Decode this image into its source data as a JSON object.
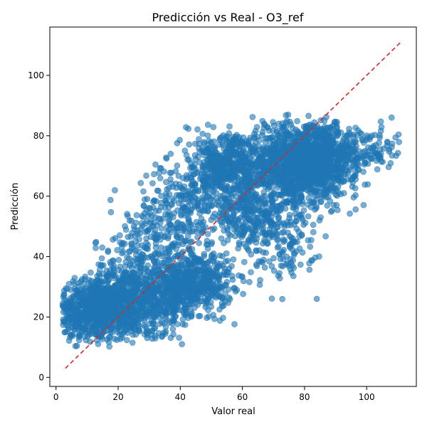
{
  "chart_data": {
    "type": "scatter",
    "title": "Predicción vs Real - O3_ref",
    "xlabel": "Valor real",
    "ylabel": "Predicción",
    "xlim": [
      -2,
      116
    ],
    "ylim": [
      -3,
      116
    ],
    "xticks": [
      0,
      20,
      40,
      60,
      80,
      100
    ],
    "yticks": [
      0,
      20,
      40,
      60,
      80,
      100
    ],
    "grid": false,
    "point_color": "#1f77b4",
    "reference_line": {
      "from": [
        3,
        3
      ],
      "to": [
        111,
        111
      ],
      "color": "#d62728",
      "style": "dashed"
    },
    "series": [
      {
        "clusters": [
          {
            "cx": 12,
            "cy": 22,
            "sx": 7,
            "sy": 5,
            "n": 700
          },
          {
            "cx": 22,
            "cy": 25,
            "sx": 7,
            "sy": 6,
            "n": 400
          },
          {
            "cx": 35,
            "cy": 27,
            "sx": 7,
            "sy": 6,
            "n": 350
          },
          {
            "cx": 45,
            "cy": 32,
            "sx": 6,
            "sy": 5,
            "n": 450
          },
          {
            "cx": 28,
            "cy": 40,
            "sx": 8,
            "sy": 8,
            "n": 200
          },
          {
            "cx": 40,
            "cy": 55,
            "sx": 7,
            "sy": 8,
            "n": 250
          },
          {
            "cx": 52,
            "cy": 68,
            "sx": 6,
            "sy": 6,
            "n": 300
          },
          {
            "cx": 62,
            "cy": 55,
            "sx": 6,
            "sy": 6,
            "n": 300
          },
          {
            "cx": 75,
            "cy": 70,
            "sx": 6,
            "sy": 7,
            "n": 700
          },
          {
            "cx": 85,
            "cy": 72,
            "sx": 6,
            "sy": 6,
            "n": 800
          },
          {
            "cx": 72,
            "cy": 45,
            "sx": 6,
            "sy": 7,
            "n": 150
          },
          {
            "cx": 100,
            "cy": 75,
            "sx": 6,
            "sy": 4,
            "n": 120
          },
          {
            "cx": 58,
            "cy": 72,
            "sx": 5,
            "sy": 5,
            "n": 250
          }
        ],
        "x_range": [
          2,
          111
        ],
        "y_range": [
          10,
          87
        ]
      }
    ]
  }
}
